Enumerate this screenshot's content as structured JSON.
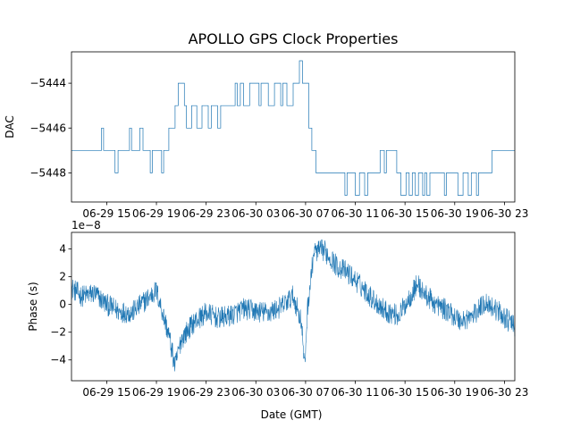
{
  "chart_data": [
    {
      "type": "line",
      "title": "APOLLO GPS Clock Properties",
      "xlabel": "",
      "ylabel": "DAC",
      "ylim": [
        -5449.3,
        -5442.6
      ],
      "xlim": [
        "06-29 12:10",
        "06-30 23:50"
      ],
      "xtick_labels": [
        "06-29 15",
        "06-29 19",
        "06-29 23",
        "06-30 03",
        "06-30 07",
        "06-30 11",
        "06-30 15",
        "06-30 19",
        "06-30 23"
      ],
      "yticks": [
        -5448,
        -5446,
        -5444
      ],
      "ytick_labels": [
        "−5448",
        "−5446",
        "−5444"
      ],
      "grid": false,
      "series": [
        {
          "color": "#1f77b4",
          "x": [
            "06-29 12:10",
            "06-29 14:35",
            "06-29 14:45",
            "06-29 15:40",
            "06-29 15:55",
            "06-29 16:50",
            "06-29 17:00",
            "06-29 17:40",
            "06-29 17:55",
            "06-29 18:30",
            "06-29 18:40",
            "06-29 19:25",
            "06-29 19:35",
            "06-29 20:00",
            "06-29 20:30",
            "06-29 20:45",
            "06-29 21:15",
            "06-29 21:25",
            "06-29 21:50",
            "06-29 22:15",
            "06-29 22:40",
            "06-29 23:10",
            "06-29 23:25",
            "06-29 23:55",
            "06-30 00:10",
            "06-30 01:20",
            "06-30 01:30",
            "06-30 01:45",
            "06-30 02:00",
            "06-30 02:30",
            "06-30 03:15",
            "06-30 03:25",
            "06-30 04:00",
            "06-30 04:30",
            "06-30 05:00",
            "06-30 05:10",
            "06-30 05:30",
            "06-30 06:00",
            "06-30 06:30",
            "06-30 06:45",
            "06-30 07:15",
            "06-30 07:30",
            "06-30 07:50",
            "06-30 08:15",
            "06-30 08:40",
            "06-30 09:30",
            "06-30 10:10",
            "06-30 10:20",
            "06-30 11:00",
            "06-30 11:20",
            "06-30 11:45",
            "06-30 12:00",
            "06-30 12:50",
            "06-30 13:00",
            "06-30 13:20",
            "06-30 13:30",
            "06-30 14:20",
            "06-30 14:40",
            "06-30 15:05",
            "06-30 15:20",
            "06-30 15:35",
            "06-30 15:50",
            "06-30 16:05",
            "06-30 16:25",
            "06-30 16:35",
            "06-30 16:45",
            "06-30 17:00",
            "06-30 17:30",
            "06-30 18:10",
            "06-30 18:20",
            "06-30 18:50",
            "06-30 19:15",
            "06-30 19:40",
            "06-30 20:05",
            "06-30 20:20",
            "06-30 20:45",
            "06-30 20:55",
            "06-30 21:10",
            "06-30 21:45",
            "06-30 22:00",
            "06-30 22:30",
            "06-30 23:50"
          ],
          "y": [
            -5447,
            -5446,
            -5447,
            -5448,
            -5447,
            -5446,
            -5447,
            -5446,
            -5447,
            -5448,
            -5447,
            -5448,
            -5447,
            -5446,
            -5445,
            -5444,
            -5445,
            -5446,
            -5445,
            -5446,
            -5445,
            -5446,
            -5445,
            -5446,
            -5445,
            -5444,
            -5445,
            -5444,
            -5445,
            -5444,
            -5445,
            -5444,
            -5445,
            -5444,
            -5445,
            -5444,
            -5445,
            -5444,
            -5443,
            -5444,
            -5446,
            -5447,
            -5448,
            -5448,
            -5448,
            -5448,
            -5449,
            -5448,
            -5449,
            -5448,
            -5449,
            -5448,
            -5448,
            -5447,
            -5448,
            -5447,
            -5448,
            -5449,
            -5448,
            -5449,
            -5448,
            -5449,
            -5448,
            -5449,
            -5448,
            -5449,
            -5448,
            -5448,
            -5449,
            -5448,
            -5448,
            -5449,
            -5448,
            -5449,
            -5448,
            -5449,
            -5448,
            -5448,
            -5448,
            -5447,
            -5447,
            -5447
          ]
        }
      ]
    },
    {
      "type": "line",
      "title": "",
      "xlabel": "Date (GMT)",
      "ylabel": "Phase (s)",
      "offset_text": "1e−8",
      "ylim": [
        -5.5,
        5.2
      ],
      "xlim": [
        "06-29 12:10",
        "06-30 23:50"
      ],
      "xtick_labels": [
        "06-29 15",
        "06-29 19",
        "06-29 23",
        "06-30 03",
        "06-30 07",
        "06-30 11",
        "06-30 15",
        "06-30 19",
        "06-30 23"
      ],
      "yticks": [
        -4,
        -2,
        0,
        2,
        4
      ],
      "ytick_labels": [
        "−4",
        "−2",
        "0",
        "2",
        "4"
      ],
      "grid": false,
      "series": [
        {
          "color": "#1f77b4",
          "x": [
            "06-29 12:10",
            "06-29 13:00",
            "06-29 14:00",
            "06-29 15:00",
            "06-29 16:00",
            "06-29 17:00",
            "06-29 18:00",
            "06-29 19:00",
            "06-29 19:30",
            "06-29 20:00",
            "06-29 20:30",
            "06-29 21:00",
            "06-29 22:00",
            "06-29 23:00",
            "06-30 00:00",
            "06-30 01:00",
            "06-30 02:00",
            "06-30 03:00",
            "06-30 04:00",
            "06-30 05:00",
            "06-30 06:00",
            "06-30 06:40",
            "06-30 06:55",
            "06-30 07:10",
            "06-30 07:40",
            "06-30 08:30",
            "06-30 09:30",
            "06-30 10:30",
            "06-30 11:30",
            "06-30 12:30",
            "06-30 13:30",
            "06-30 14:30",
            "06-30 15:30",
            "06-30 16:00",
            "06-30 16:30",
            "06-30 17:30",
            "06-30 18:30",
            "06-30 19:30",
            "06-30 20:30",
            "06-30 21:30",
            "06-30 22:30",
            "06-30 23:50"
          ],
          "y": [
            1.2,
            0.6,
            0.8,
            0.0,
            -0.5,
            -0.6,
            0.2,
            1.0,
            -0.6,
            -2.2,
            -4.5,
            -2.5,
            -1.3,
            -0.6,
            -1.0,
            -0.8,
            -0.3,
            -0.5,
            -0.6,
            -0.2,
            0.6,
            -1.2,
            -4.6,
            -0.2,
            3.8,
            3.9,
            2.8,
            2.2,
            1.3,
            0.3,
            -0.5,
            -0.8,
            0.7,
            1.5,
            0.8,
            0.0,
            -0.5,
            -1.2,
            -0.8,
            0.2,
            -0.5,
            -1.6
          ]
        }
      ]
    }
  ]
}
